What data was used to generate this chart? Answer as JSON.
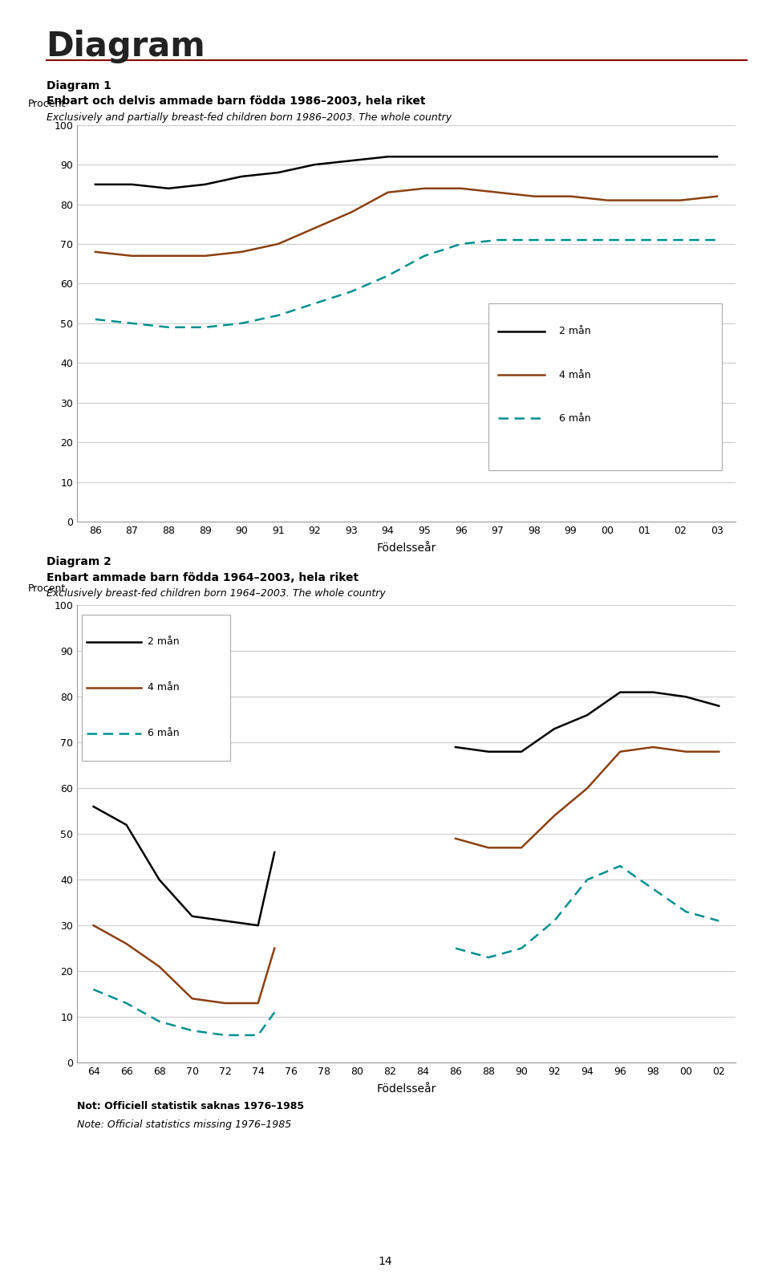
{
  "page_title": "Diagram",
  "top_rule_color": "#8B0000",
  "diag1_title_line1": "Diagram 1",
  "diag1_title_line2": "Enbart och delvis ammade barn födda 1986–2003, hela riket",
  "diag1_title_italic": "Exclusively and partially breast-fed children born 1986–2003. The whole country",
  "diag1_ylabel": "Procent",
  "diag1_xlabel": "Födelsseår",
  "diag1_yticks": [
    0,
    10,
    20,
    30,
    40,
    50,
    60,
    70,
    80,
    90,
    100
  ],
  "diag1_xticks": [
    "86",
    "87",
    "88",
    "89",
    "90",
    "91",
    "92",
    "93",
    "94",
    "95",
    "96",
    "97",
    "98",
    "99",
    "00",
    "01",
    "02",
    "03"
  ],
  "diag1_2man": [
    85,
    85,
    84,
    85,
    87,
    88,
    90,
    91,
    92,
    92,
    92,
    92,
    92,
    92,
    92,
    92,
    92,
    92
  ],
  "diag1_4man": [
    68,
    67,
    67,
    67,
    68,
    70,
    74,
    78,
    83,
    84,
    84,
    83,
    82,
    82,
    81,
    81,
    81,
    82
  ],
  "diag1_6man": [
    51,
    50,
    49,
    49,
    50,
    52,
    55,
    58,
    62,
    67,
    70,
    71,
    71,
    71,
    71,
    71,
    71,
    71
  ],
  "diag2_title_line1": "Diagram 2",
  "diag2_title_line2": "Enbart ammade barn födda 1964–2003, hela riket",
  "diag2_title_italic": "Exclusively breast-fed children born 1964–2003. The whole country",
  "diag2_ylabel": "Procent",
  "diag2_xlabel": "Födelsseår",
  "diag2_yticks": [
    0,
    10,
    20,
    30,
    40,
    50,
    60,
    70,
    80,
    90,
    100
  ],
  "diag2_xticks": [
    "64",
    "66",
    "68",
    "70",
    "72",
    "74",
    "76",
    "78",
    "80",
    "82",
    "84",
    "86",
    "88",
    "90",
    "92",
    "94",
    "96",
    "98",
    "00",
    "02"
  ],
  "diag2_x_2man_a": [
    1964,
    1966,
    1968,
    1970,
    1972,
    1974,
    1975
  ],
  "diag2_2man_a": [
    56,
    52,
    40,
    32,
    31,
    30,
    46
  ],
  "diag2_x_2man_b": [
    1986,
    1988,
    1990,
    1992,
    1994,
    1996,
    1998,
    2000,
    2002
  ],
  "diag2_2man_b": [
    69,
    68,
    68,
    73,
    76,
    81,
    81,
    80,
    78
  ],
  "diag2_x_4man_a": [
    1964,
    1966,
    1968,
    1970,
    1972,
    1974,
    1975
  ],
  "diag2_4man_a": [
    30,
    26,
    21,
    14,
    13,
    13,
    25
  ],
  "diag2_x_4man_b": [
    1986,
    1988,
    1990,
    1992,
    1994,
    1996,
    1998,
    2000,
    2002
  ],
  "diag2_4man_b": [
    49,
    47,
    47,
    54,
    60,
    68,
    69,
    68,
    68
  ],
  "diag2_x_6man_a": [
    1964,
    1966,
    1968,
    1970,
    1972,
    1974,
    1975
  ],
  "diag2_6man_a": [
    16,
    13,
    9,
    7,
    6,
    6,
    11
  ],
  "diag2_x_6man_b": [
    1986,
    1988,
    1990,
    1992,
    1994,
    1996,
    1998,
    2000,
    2002
  ],
  "diag2_6man_b": [
    25,
    23,
    25,
    31,
    40,
    43,
    38,
    33,
    31
  ],
  "color_black": "#000000",
  "color_brown": "#8B4010",
  "color_teal": "#009090",
  "legend_2man": "2 mån",
  "legend_4man": "4 mån",
  "legend_6man": "6 mån",
  "note_bold": "Not: Officiell statistik saknas 1976–1985",
  "note_italic": "Note: Official statistics missing 1976–1985",
  "page_number": "14",
  "bg_color": "#ffffff",
  "grid_color": "#cccccc",
  "axis_color": "#999999"
}
